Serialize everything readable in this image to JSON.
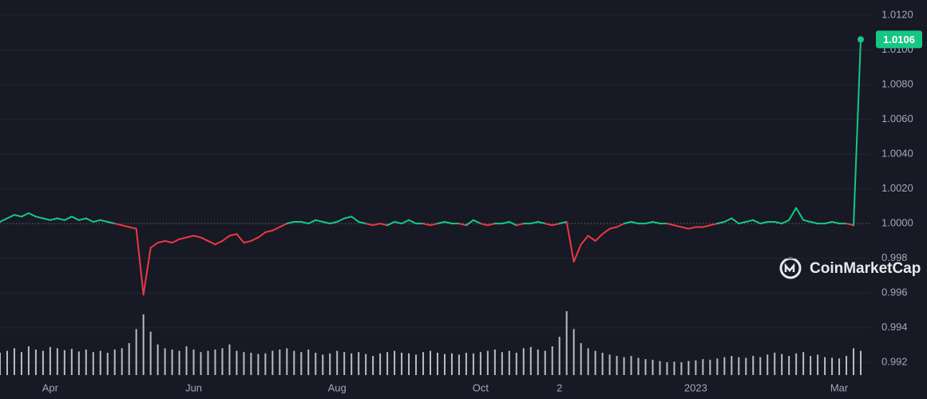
{
  "chart_data": {
    "type": "line",
    "watermark": "CoinMarketCap",
    "categories": [
      null,
      null,
      null,
      null,
      null,
      null,
      null,
      "Apr",
      null,
      null,
      null,
      null,
      null,
      null,
      null,
      null,
      null,
      null,
      null,
      null,
      null,
      null,
      null,
      null,
      null,
      null,
      null,
      "Jun",
      null,
      null,
      null,
      null,
      null,
      null,
      null,
      null,
      null,
      null,
      null,
      null,
      null,
      null,
      null,
      null,
      null,
      null,
      null,
      "Aug",
      null,
      null,
      null,
      null,
      null,
      null,
      null,
      null,
      null,
      null,
      null,
      null,
      null,
      null,
      null,
      null,
      null,
      null,
      null,
      "Oct",
      null,
      null,
      null,
      null,
      null,
      null,
      null,
      null,
      null,
      null,
      "2",
      null,
      null,
      null,
      null,
      null,
      null,
      null,
      null,
      null,
      null,
      null,
      null,
      null,
      null,
      null,
      null,
      null,
      null,
      "2023",
      null,
      null,
      null,
      null,
      null,
      null,
      null,
      null,
      null,
      null,
      null,
      null,
      null,
      null,
      null,
      null,
      null,
      null,
      null,
      "Mar",
      null,
      null,
      null
    ],
    "series": [
      {
        "up_color": "#16c784",
        "down_color": "#ea3943",
        "values": [
          1.0001,
          1.0003,
          1.0005,
          1.0004,
          1.0006,
          1.0004,
          1.0003,
          1.0002,
          1.0003,
          1.0002,
          1.0004,
          1.0002,
          1.0003,
          1.0001,
          1.0002,
          1.0001,
          1.0,
          0.9999,
          0.9998,
          0.9997,
          0.9959,
          0.9986,
          0.9989,
          0.999,
          0.9989,
          0.9991,
          0.9992,
          0.9993,
          0.9992,
          0.999,
          0.9988,
          0.999,
          0.9993,
          0.9994,
          0.9989,
          0.999,
          0.9992,
          0.9995,
          0.9996,
          0.9998,
          1.0,
          1.0001,
          1.0001,
          1.0,
          1.0002,
          1.0001,
          1.0,
          1.0001,
          1.0003,
          1.0004,
          1.0001,
          1.0,
          0.9999,
          1.0,
          0.9999,
          1.0001,
          1.0,
          1.0002,
          1.0,
          1.0,
          0.9999,
          1.0,
          1.0001,
          1.0,
          1.0,
          0.9999,
          1.0002,
          1.0,
          0.9999,
          1.0,
          1.0,
          1.0001,
          0.9999,
          1.0,
          1.0,
          1.0001,
          1.0,
          0.9999,
          1.0,
          1.0001,
          0.9978,
          0.9988,
          0.9993,
          0.999,
          0.9994,
          0.9997,
          0.9998,
          1.0,
          1.0001,
          1.0,
          1.0,
          1.0001,
          1.0,
          1.0,
          0.9999,
          0.9998,
          0.9997,
          0.9998,
          0.9998,
          0.9999,
          1.0,
          1.0001,
          1.0003,
          1.0,
          1.0001,
          1.0002,
          1.0,
          1.0001,
          1.0001,
          1.0,
          1.0002,
          1.0009,
          1.0002,
          1.0001,
          1.0,
          1.0,
          1.0001,
          1.0,
          1.0,
          0.9999,
          1.0106
        ]
      }
    ],
    "volume": [
      35,
      38,
      42,
      36,
      45,
      40,
      38,
      44,
      42,
      39,
      41,
      37,
      40,
      36,
      38,
      35,
      40,
      42,
      50,
      72,
      95,
      68,
      48,
      42,
      40,
      38,
      45,
      40,
      36,
      38,
      40,
      42,
      48,
      38,
      36,
      35,
      33,
      34,
      38,
      40,
      42,
      38,
      36,
      40,
      35,
      32,
      34,
      38,
      36,
      34,
      36,
      33,
      30,
      34,
      36,
      38,
      35,
      34,
      32,
      36,
      38,
      35,
      33,
      34,
      32,
      35,
      34,
      36,
      38,
      40,
      36,
      38,
      35,
      42,
      44,
      40,
      38,
      45,
      60,
      100,
      72,
      50,
      42,
      38,
      35,
      32,
      30,
      28,
      30,
      27,
      25,
      24,
      22,
      20,
      21,
      20,
      22,
      23,
      25,
      24,
      26,
      28,
      30,
      28,
      27,
      30,
      28,
      32,
      35,
      33,
      30,
      34,
      36,
      30,
      32,
      28,
      27,
      26,
      30,
      42,
      38
    ],
    "volume_color": "#d6d8e0",
    "baseline": 1.0,
    "ylim": [
      0.9899,
      1.01287
    ],
    "y2lim": [
      0,
      100
    ],
    "yticks": [
      {
        "value": 1.012,
        "label": "1.0120"
      },
      {
        "value": 1.01,
        "label": "1.0100"
      },
      {
        "value": 1.008,
        "label": "1.0080"
      },
      {
        "value": 1.006,
        "label": "1.0060"
      },
      {
        "value": 1.004,
        "label": "1.0040"
      },
      {
        "value": 1.002,
        "label": "1.0020"
      },
      {
        "value": 1.0,
        "label": "1.0000"
      },
      0.998,
      0.996,
      0.994,
      0.992
    ],
    "grid": true
  }
}
